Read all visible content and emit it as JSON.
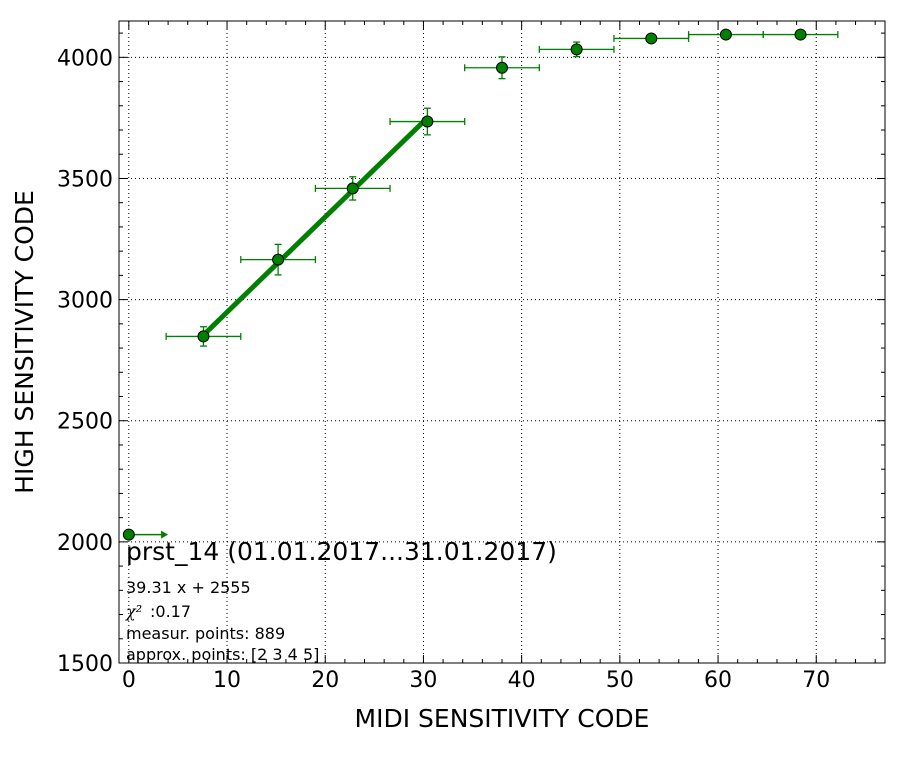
{
  "chart_data": {
    "type": "scatter",
    "xlabel": "MIDI SENSITIVITY CODE",
    "ylabel": "HIGH SENSITIVITY CODE",
    "xlim": [
      -1,
      77
    ],
    "ylim": [
      1500,
      4150
    ],
    "grid": true,
    "x_ticks": [
      0,
      10,
      20,
      30,
      40,
      50,
      60,
      70
    ],
    "y_ticks": [
      1500,
      2000,
      2500,
      3000,
      3500,
      4000
    ],
    "x_tick_labels": [
      "0",
      "10",
      "20",
      "30",
      "40",
      "50",
      "60",
      "70"
    ],
    "y_tick_labels": [
      "1500",
      "2000",
      "2500",
      "3000",
      "3500",
      "4000"
    ],
    "color": "#008000",
    "points": [
      {
        "x": 0,
        "y": 2030,
        "xerr": 0,
        "yerr": 0
      },
      {
        "x": 7.6,
        "y": 2848,
        "xerr": 3.8,
        "yerr": 40
      },
      {
        "x": 15.2,
        "y": 3165,
        "xerr": 3.8,
        "yerr": 63
      },
      {
        "x": 22.8,
        "y": 3459,
        "xerr": 3.8,
        "yerr": 48
      },
      {
        "x": 30.4,
        "y": 3735,
        "xerr": 3.8,
        "yerr": 55
      },
      {
        "x": 38.0,
        "y": 3957,
        "xerr": 3.8,
        "yerr": 45
      },
      {
        "x": 45.6,
        "y": 4033,
        "xerr": 3.8,
        "yerr": 30
      },
      {
        "x": 53.2,
        "y": 4078,
        "xerr": 3.8,
        "yerr": 0
      },
      {
        "x": 60.8,
        "y": 4094,
        "xerr": 3.8,
        "yerr": 0
      },
      {
        "x": 68.4,
        "y": 4094,
        "xerr": 3.8,
        "yerr": 0
      }
    ],
    "arrow_point": {
      "x": 0,
      "y": 2030,
      "x_end": 4
    },
    "fit": {
      "slope": 39.31,
      "intercept": 2555,
      "x_start": 7.6,
      "x_end": 30.4
    },
    "annotation": {
      "title": "prst_14 (01.01.2017...31.01.2017)",
      "fit_equation": "39.31 x + 2555",
      "chi2_symbol": "χ²",
      "chi2_value": ":0.17",
      "measur_points": "measur. points: 889",
      "approx_points": "approx. points: [2 3 4 5]"
    }
  }
}
